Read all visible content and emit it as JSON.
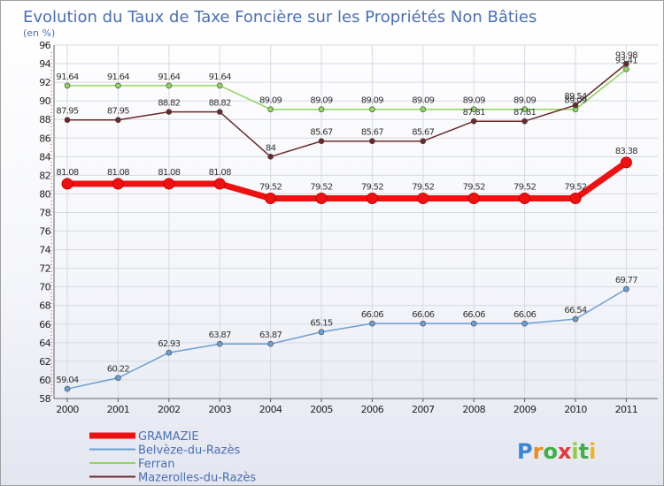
{
  "chart_data": {
    "type": "line",
    "title": "Evolution du Taux de Taxe Foncière sur les Propriétés Non Bâties",
    "ylabel": "(en %)",
    "xlabel": "",
    "ylim": [
      58,
      96
    ],
    "yticks": [
      58,
      60,
      62,
      64,
      66,
      68,
      70,
      72,
      74,
      76,
      78,
      80,
      82,
      84,
      86,
      88,
      90,
      92,
      94,
      96
    ],
    "categories": [
      "2000",
      "2001",
      "2002",
      "2003",
      "2004",
      "2005",
      "2006",
      "2007",
      "2008",
      "2009",
      "2010",
      "2011"
    ],
    "legend_position": "bottom-left",
    "series": [
      {
        "name": "GRAMAZIE",
        "color": "#ee1111",
        "values": [
          81.08,
          81.08,
          81.08,
          81.08,
          79.52,
          79.52,
          79.52,
          79.52,
          79.52,
          79.52,
          79.52,
          83.38
        ],
        "labels": [
          "81.08",
          "81.08",
          "81.08",
          "81.08",
          "79.52",
          "79.52",
          "79.52",
          "79.52",
          "79.52",
          "79.52",
          "79.52",
          "83.38"
        ]
      },
      {
        "name": "Belvèze-du-Razès",
        "color": "#6a9fd4",
        "values": [
          59.04,
          60.22,
          62.93,
          63.87,
          63.87,
          65.15,
          66.06,
          66.06,
          66.06,
          66.06,
          66.54,
          69.77
        ],
        "labels": [
          "59.04",
          "60.22",
          "62.93",
          "63.87",
          "63.87",
          "65.15",
          "66.06",
          "66.06",
          "66.06",
          "66.06",
          "66.54",
          "69.77"
        ]
      },
      {
        "name": "Ferran",
        "color": "#8ed65c",
        "values": [
          91.64,
          91.64,
          91.64,
          91.64,
          89.09,
          89.09,
          89.09,
          89.09,
          89.09,
          89.09,
          89.09,
          93.41
        ],
        "labels": [
          "91.64",
          "91.64",
          "91.64",
          "91.64",
          "89.09",
          "89.09",
          "89.09",
          "89.09",
          "89.09",
          "89.09",
          "89.09",
          "93.41"
        ]
      },
      {
        "name": "Mazerolles-du-Razès",
        "color": "#6b2a2a",
        "values": [
          87.95,
          87.95,
          88.82,
          88.82,
          84,
          85.67,
          85.67,
          85.67,
          87.81,
          87.81,
          89.54,
          93.98
        ],
        "labels": [
          "87.95",
          "87.95",
          "88.82",
          "88.82",
          "84",
          "85.67",
          "85.67",
          "85.67",
          "87.81",
          "87.81",
          "89.54",
          "93.98"
        ]
      }
    ],
    "logo_text": "Proxiti"
  }
}
